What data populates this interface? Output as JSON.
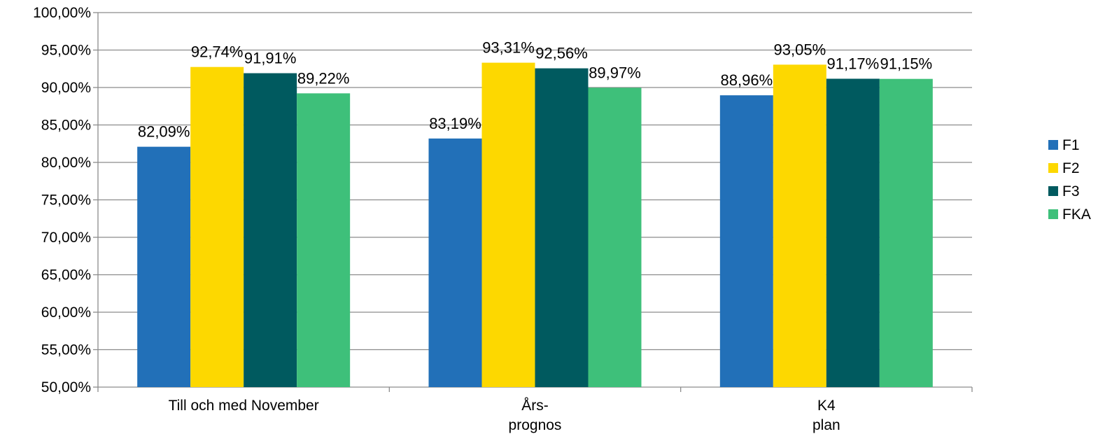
{
  "chart_data": {
    "type": "bar",
    "categories": [
      [
        "Till och med November"
      ],
      [
        "Års-",
        "prognos"
      ],
      [
        "K4",
        "plan"
      ]
    ],
    "series": [
      {
        "name": "F1",
        "color": "#2270b8",
        "values": [
          82.09,
          83.19,
          88.96
        ],
        "labels": [
          "82,09%",
          "83,19%",
          "88,96%"
        ]
      },
      {
        "name": "F2",
        "color": "#fdd800",
        "values": [
          92.74,
          93.31,
          93.05
        ],
        "labels": [
          "92,74%",
          "93,31%",
          "93,05%"
        ]
      },
      {
        "name": "F3",
        "color": "#005a5f",
        "values": [
          91.91,
          92.56,
          91.17
        ],
        "labels": [
          "91,91%",
          "92,56%",
          "91,17%"
        ]
      },
      {
        "name": "FKA",
        "color": "#3ec07a",
        "values": [
          89.22,
          89.97,
          91.15
        ],
        "labels": [
          "89,22%",
          "89,97%",
          "91,15%"
        ]
      }
    ],
    "ylim": [
      50,
      100
    ],
    "yticks": [
      "50,00%",
      "55,00%",
      "60,00%",
      "65,00%",
      "70,00%",
      "75,00%",
      "80,00%",
      "85,00%",
      "90,00%",
      "95,00%",
      "100,00%"
    ],
    "grid": true,
    "legend": "right"
  }
}
